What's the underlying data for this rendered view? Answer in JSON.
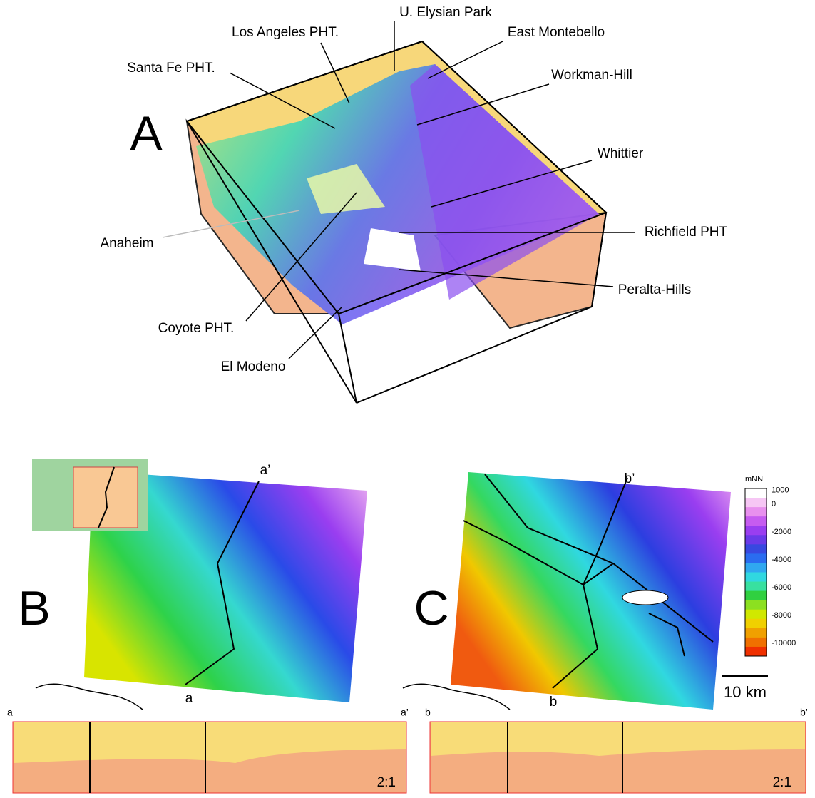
{
  "panel_a": {
    "letter": "A",
    "labels": [
      "U. Elysian Park",
      "Los Angeles PHT.",
      "East Montebello",
      "Santa Fe PHT.",
      "Workman-Hill",
      "Whittier",
      "Anaheim",
      "Richfield PHT",
      "Peralta-Hills",
      "Coyote PHT.",
      "El Modeno"
    ]
  },
  "panel_b": {
    "letter": "B",
    "profile_start": "a",
    "profile_end": "a’"
  },
  "panel_c": {
    "letter": "C",
    "profile_start": "b",
    "profile_end": "b’"
  },
  "colorbar": {
    "unit": "mNN",
    "ticks": [
      1000,
      0,
      -2000,
      -4000,
      -6000,
      -8000,
      -10000
    ]
  },
  "scale_bar": "10 km",
  "sections": [
    {
      "start": "a",
      "end": "a’",
      "scale": "2:1"
    },
    {
      "start": "b",
      "end": "b’",
      "scale": "2:1"
    }
  ]
}
